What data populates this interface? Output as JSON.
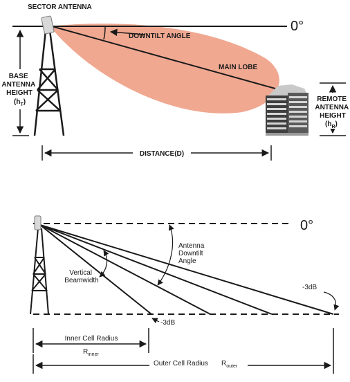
{
  "top": {
    "sector_antenna": "SECTOR ANTENNA",
    "zero_deg": "0°",
    "downtilt_angle": "DOWNTILT ANGLE",
    "main_lobe": "MAIN LOBE",
    "base_height": [
      "BASE",
      "ANTENNA",
      "HEIGHT"
    ],
    "base_symbol": "(h",
    "base_sub": "T",
    "base_close": ")",
    "remote_height": [
      "REMOTE",
      "ANTENNA",
      "HEIGHT"
    ],
    "remote_symbol": "(h",
    "remote_sub": "R",
    "remote_close": ")",
    "distance": "DISTANCE(D)"
  },
  "bottom": {
    "zero_deg": "0°",
    "antenna_downtilt": [
      "Antenna",
      "Downtilt",
      "Angle"
    ],
    "vertical_beamwidth": [
      "Vertical",
      "Beamwidth"
    ],
    "minus3db_right": "-3dB",
    "minus3db_bottom": "-3dB",
    "inner_radius": "Inner Cell Radius",
    "r_inner": "R",
    "r_inner_sub": "inner",
    "outer_radius": "Outer Cell Radius",
    "r_outer": "R",
    "r_outer_sub": "outer"
  },
  "colors": {
    "lobe": "#f0a891",
    "line": "#1a1a1a",
    "building": "#4a4a4a"
  }
}
